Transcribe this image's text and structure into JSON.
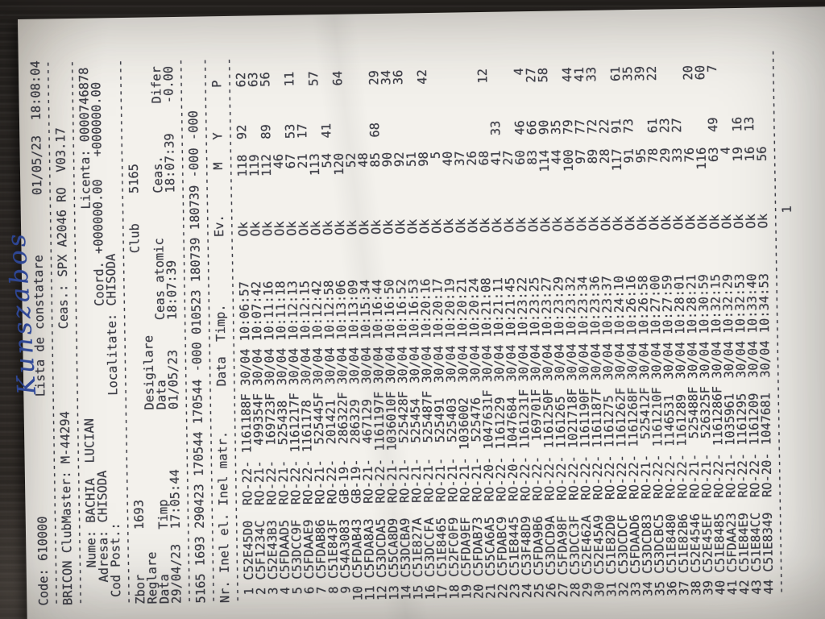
{
  "colors": {
    "desk": "#36312d",
    "paper": "#f3f1ec",
    "printed_ink": "#31323b",
    "handwriting_ink": "#3550a8"
  },
  "document": {
    "handwriting": "Kunszabos",
    "separator": "-------------------------------------------------------------------------",
    "print_lines": [
      "Code: 610000                Lista de constatare        01/05/23  18:08:04",
      "-------------------------------------------------------------------------",
      "BRICON ClubMaster: M-44294           Ceas.: SPX A2046 RO  V03.17",
      "-------------------------------------------------------------------------",
      "     Nume: BACHIA  LUCIAN                            Licenta: 0000746878",
      "   Adresa: CHISODA                      Coord. +000000.00   +000000.00",
      " Cod Post.:                 Localitate: CHISODA",
      "-------------------------------------------------------------------------",
      "Zbor      1693                                 Club    5165",
      "Reglare                   Desigilare",
      "Data      Timp            Data        Ceas atomic      Ceas.       Difer",
      "29/04/23  17:05:44        01/05/23    18:07:39         18:07:39    -0.00",
      "-------------------------------------------------------------------------",
      "5165 1693 290423 170544 170544 -000 010523 180739 180739 -000 -000",
      "-------------------------------------------------------------------------",
      "Nr. Inel el. Inel matr.      Data  Timp.         Ev.      M   Y      P",
      "-------------------------------------------------------------------------"
    ],
    "table": {
      "columns": [
        "Nr.",
        "Inel el.",
        "Inel matr.",
        "Data",
        "Timp.",
        "Ev.",
        "M",
        "Y",
        "P"
      ],
      "rows": [
        [
          "1",
          "C52E45D0",
          "RO-22-",
          "1161188F",
          "30/04",
          "10:06:57",
          "Ok",
          "118",
          "92",
          "62"
        ],
        [
          "2",
          "C5F1234C",
          "RO-21-",
          "499354F",
          "30/04",
          "10:07:42",
          "Ok",
          "119",
          "",
          "63"
        ],
        [
          "3",
          "C52E43B3",
          "RO-22-",
          "169723F",
          "30/04",
          "10:11:16",
          "Ok",
          "112",
          "89",
          "56"
        ],
        [
          "4",
          "C5FDAAD5",
          "RO-21-",
          "525438",
          "30/04",
          "10:11:18",
          "Ok",
          "46",
          "",
          ""
        ],
        [
          "5",
          "C53DCC9F",
          "RO-22-",
          "1161217F",
          "30/04",
          "10:12:13",
          "Ok",
          "67",
          "53",
          "11"
        ],
        [
          "6",
          "C5FDAAE9",
          "RO-22-",
          "1161178",
          "30/04",
          "10:12:15",
          "Ok",
          "21",
          "17",
          ""
        ],
        [
          "7",
          "C5FDAB86",
          "RO-21-",
          "525445F",
          "30/04",
          "10:12:42",
          "Ok",
          "113",
          "",
          "57"
        ],
        [
          "8",
          "C51E843F",
          "RO-22-",
          "201421",
          "30/04",
          "10:12:58",
          "Ok",
          "54",
          "41",
          ""
        ],
        [
          "9",
          "C54A3083",
          "GB-19-",
          "286322F",
          "30/04",
          "10:13:06",
          "Ok",
          "120",
          "",
          "64"
        ],
        [
          "10",
          "C5FDAB43",
          "GB-19-",
          "286329",
          "30/04",
          "10:13:09",
          "Ok",
          "52",
          "",
          ""
        ],
        [
          "11",
          "C5FDA8A3",
          "RO-21-",
          "467129",
          "30/04",
          "10:15:34",
          "Ok",
          "48",
          "",
          ""
        ],
        [
          "12",
          "C53DCDA5",
          "RO-22-",
          "1161197F",
          "30/04",
          "10:16:44",
          "Ok",
          "85",
          "68",
          "29"
        ],
        [
          "13",
          "C55CA8D9",
          "RO-21-",
          "1036010F",
          "30/04",
          "10:16:50",
          "Ok",
          "90",
          "",
          "34"
        ],
        [
          "14",
          "C53DCBA9",
          "RO-21-",
          "525428F",
          "30/04",
          "10:16:52",
          "Ok",
          "92",
          "",
          "36"
        ],
        [
          "15",
          "C51E827A",
          "RO-21-",
          "525454",
          "30/04",
          "10:16:53",
          "Ok",
          "51",
          "",
          ""
        ],
        [
          "16",
          "C53DCCFA",
          "RO-21-",
          "525487F",
          "30/04",
          "10:20:16",
          "Ok",
          "98",
          "",
          "42"
        ],
        [
          "17",
          "C51E8465",
          "RO-21-",
          "525491",
          "30/04",
          "10:20:17",
          "Ok",
          "5",
          "",
          ""
        ],
        [
          "18",
          "C52FC0F9",
          "RO-21-",
          "525403",
          "30/04",
          "10:20:19",
          "Ok",
          "40",
          "",
          ""
        ],
        [
          "19",
          "C5FDA9EF",
          "RO-21-",
          "1036002",
          "30/04",
          "10:20:21",
          "Ok",
          "37",
          "",
          ""
        ],
        [
          "20",
          "C5FDAB73",
          "RO-21-",
          "525476",
          "30/04",
          "10:20:24",
          "Ok",
          "26",
          "",
          ""
        ],
        [
          "21",
          "C55CA6A5",
          "RO-20-",
          "1047631F",
          "30/04",
          "10:21:08",
          "Ok",
          "68",
          "",
          "12"
        ],
        [
          "22",
          "C5FDABC9",
          "RO-22-",
          "1161229",
          "30/04",
          "10:21:11",
          "Ok",
          "41",
          "33",
          ""
        ],
        [
          "23",
          "C51E8445",
          "RO-20-",
          "1047684",
          "30/04",
          "10:21:45",
          "Ok",
          "27",
          "",
          ""
        ],
        [
          "24",
          "C53F48D9",
          "RO-22-",
          "1161231F",
          "30/04",
          "10:23:22",
          "Ok",
          "60",
          "46",
          "4"
        ],
        [
          "25",
          "C5FDA9B6",
          "RO-22-",
          "169701F",
          "30/04",
          "10:23:25",
          "Ok",
          "83",
          "66",
          "27"
        ],
        [
          "26",
          "C53DCD9A",
          "RO-22-",
          "1161250F",
          "30/04",
          "10:23:27",
          "Ok",
          "114",
          "90",
          "58"
        ],
        [
          "27",
          "C5FDA98F",
          "RO-22-",
          "1161265",
          "30/04",
          "10:23:29",
          "Ok",
          "44",
          "35",
          ""
        ],
        [
          "28",
          "C53DCC3F",
          "RO-22-",
          "1021718F",
          "30/04",
          "10:23:32",
          "Ok",
          "100",
          "79",
          "44"
        ],
        [
          "29",
          "C52E462A",
          "RO-22-",
          "1161190F",
          "30/04",
          "10:23:34",
          "Ok",
          "97",
          "77",
          "41"
        ],
        [
          "30",
          "C52E45A9",
          "RO-22-",
          "1161187F",
          "30/04",
          "10:23:36",
          "Ok",
          "89",
          "72",
          "33"
        ],
        [
          "31",
          "C51E82D0",
          "RO-22-",
          "1161275",
          "30/04",
          "10:23:37",
          "Ok",
          "28",
          "22",
          ""
        ],
        [
          "32",
          "C53DCDCF",
          "RO-22-",
          "1161262F",
          "30/04",
          "10:24:10",
          "Ok",
          "117",
          "91",
          "61"
        ],
        [
          "33",
          "C5FDAAD6",
          "RO-22-",
          "1161268F",
          "30/04",
          "10:26:16",
          "Ok",
          "91",
          "73",
          "35"
        ],
        [
          "34",
          "C53DCD83",
          "RO-21-",
          "525412F",
          "30/04",
          "10:26:58",
          "Ok",
          "95",
          "",
          "39"
        ],
        [
          "35",
          "C53DCBC5",
          "RO-22-",
          "1161210F",
          "30/04",
          "10:27:00",
          "Ok",
          "78",
          "61",
          "22"
        ],
        [
          "36",
          "C51E8480",
          "RO-22-",
          "1146531",
          "30/04",
          "10:27:59",
          "Ok",
          "29",
          "23",
          ""
        ],
        [
          "37",
          "C51E82B6",
          "RO-22-",
          "1161289",
          "30/04",
          "10:28:01",
          "Ok",
          "33",
          "27",
          ""
        ],
        [
          "38",
          "C52E4546",
          "RO-21-",
          "525488F",
          "30/04",
          "10:28:21",
          "Ok",
          "76",
          "",
          "20"
        ],
        [
          "39",
          "C52E45EF",
          "RO-21-",
          "526325F",
          "30/04",
          "10:30:59",
          "Ok",
          "116",
          "",
          "60"
        ],
        [
          "40",
          "C51E8485",
          "RO-22-",
          "1161286F",
          "30/04",
          "10:32:15",
          "Ok",
          "63",
          "49",
          "7"
        ],
        [
          "41",
          "C5FDAA23",
          "RO-21-",
          "1035961",
          "30/04",
          "10:32:29",
          "Ok",
          "4",
          "",
          ""
        ],
        [
          "42",
          "C51E84E9",
          "RO-22-",
          "1161295",
          "30/04",
          "10:32:53",
          "Ok",
          "19",
          "16",
          ""
        ],
        [
          "43",
          "C51E84CC",
          "RO-22-",
          "1161209",
          "30/04",
          "10:33:40",
          "Ok",
          "16",
          "13",
          ""
        ],
        [
          "44",
          "C51E8349",
          "RO-20-",
          "1047681",
          "30/04",
          "10:34:53",
          "Ok",
          "56",
          "",
          ""
        ]
      ]
    },
    "footer": {
      "page_number": "1"
    }
  }
}
